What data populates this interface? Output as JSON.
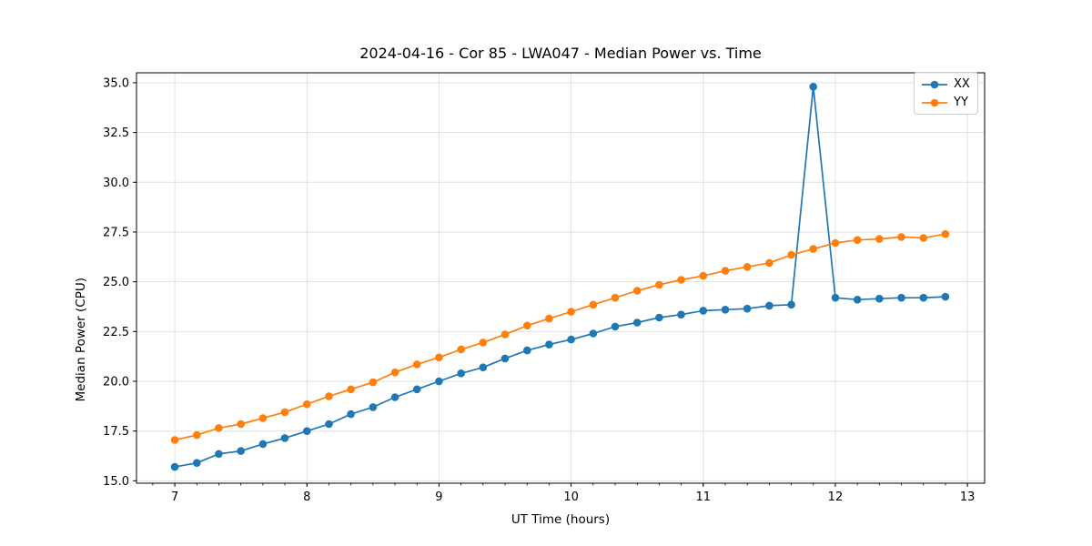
{
  "chart_data": {
    "type": "line",
    "title": "2024-04-16 - Cor 85 - LWA047 - Median Power vs. Time",
    "xlabel": "UT Time (hours)",
    "ylabel": "Median Power (CPU)",
    "grid": true,
    "legend_position": "upper right",
    "marker": "circle",
    "xlim": [
      6.71,
      13.13
    ],
    "ylim": [
      14.88,
      35.5
    ],
    "x_ticks": {
      "values": [
        7,
        8,
        9,
        10,
        11,
        12,
        13
      ],
      "labels": [
        "7",
        "8",
        "9",
        "10",
        "11",
        "12",
        "13"
      ],
      "minor_step": 0.1666667
    },
    "y_ticks": {
      "values": [
        15.0,
        17.5,
        20.0,
        22.5,
        25.0,
        27.5,
        30.0,
        32.5,
        35.0
      ],
      "labels": [
        "15.0",
        "17.5",
        "20.0",
        "22.5",
        "25.0",
        "27.5",
        "30.0",
        "32.5",
        "35.0"
      ]
    },
    "x": [
      7.0,
      7.167,
      7.333,
      7.5,
      7.667,
      7.833,
      8.0,
      8.167,
      8.333,
      8.5,
      8.667,
      8.833,
      9.0,
      9.167,
      9.333,
      9.5,
      9.667,
      9.833,
      10.0,
      10.167,
      10.333,
      10.5,
      10.667,
      10.833,
      11.0,
      11.167,
      11.333,
      11.5,
      11.667,
      11.833,
      12.0,
      12.167,
      12.333,
      12.5,
      12.667,
      12.833
    ],
    "series": [
      {
        "name": "XX",
        "color": "#1f77b4",
        "values": [
          15.7,
          15.9,
          16.35,
          16.5,
          16.85,
          17.15,
          17.5,
          17.85,
          18.35,
          18.7,
          19.2,
          19.6,
          20.0,
          20.4,
          20.7,
          21.15,
          21.55,
          21.85,
          22.1,
          22.4,
          22.75,
          22.95,
          23.2,
          23.35,
          23.55,
          23.6,
          23.65,
          23.8,
          23.85,
          34.8,
          24.2,
          24.1,
          24.15,
          24.2,
          24.2,
          24.25
        ]
      },
      {
        "name": "YY",
        "color": "#ff7f0e",
        "values": [
          17.05,
          17.3,
          17.65,
          17.85,
          18.15,
          18.45,
          18.85,
          19.25,
          19.6,
          19.95,
          20.45,
          20.85,
          21.2,
          21.6,
          21.95,
          22.35,
          22.8,
          23.15,
          23.5,
          23.85,
          24.2,
          24.55,
          24.85,
          25.1,
          25.3,
          25.55,
          25.75,
          25.95,
          26.35,
          26.65,
          26.95,
          27.1,
          27.15,
          27.25,
          27.2,
          27.4
        ]
      }
    ]
  }
}
